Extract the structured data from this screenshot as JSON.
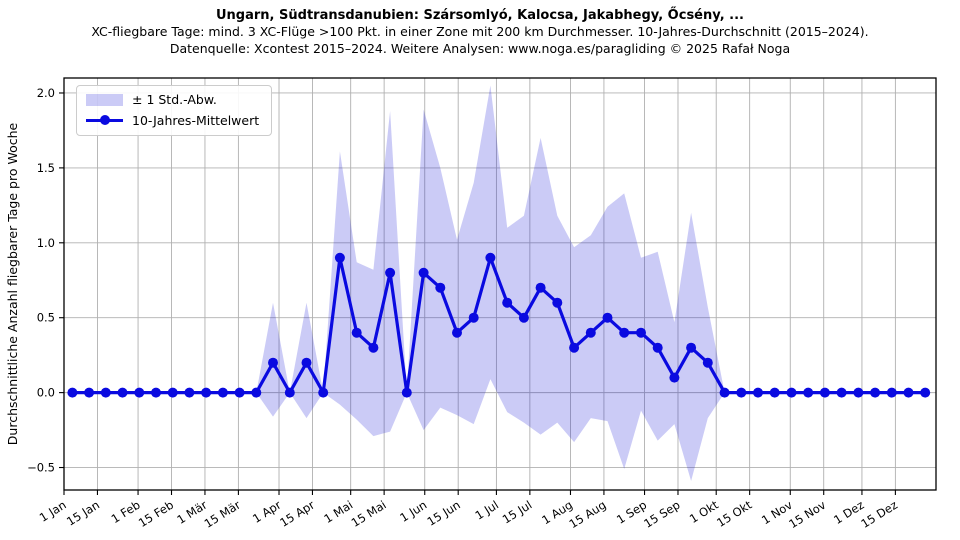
{
  "header": {
    "title": "Ungarn, Südtransdanubien: Szársomlyó, Kalocsa, Jakabhegy, Őcsény, ...",
    "subtitle1": "XC-fliegbare Tage: mind. 3 XC-Flüge >100 Pkt. in einer Zone mit 200 km Durchmesser. 10-Jahres-Durchschnitt (2015–2024).",
    "subtitle2": "Datenquelle: Xcontest 2015–2024. Weitere Analysen: www.noga.es/paragliding © 2025 Rafał Noga"
  },
  "legend": {
    "band_label": "± 1 Std.-Abw.",
    "mean_label": "10-Jahres-Mittelwert"
  },
  "colors": {
    "line": "#0a0ae0",
    "band": "rgba(20,20,215,0.22)",
    "grid": "#b0b0b0",
    "spine": "#000000",
    "text": "#000000",
    "background": "#ffffff"
  },
  "chart_data": {
    "type": "line",
    "title": "Ungarn, Südtransdanubien: Szársomlyó, Kalocsa, Jakabhegy, Őcsény, ...",
    "ylabel": "Durchschnittliche Anzahl fliegbarer Tage pro Woche",
    "xlabel": "",
    "grid": true,
    "legend_position": "upper-left",
    "ylim": [
      -0.65,
      2.1
    ],
    "xlim_days": [
      0,
      365
    ],
    "y_ticks": [
      -0.5,
      0.0,
      0.5,
      1.0,
      1.5,
      2.0
    ],
    "y_tick_labels": [
      "−0.5",
      "0.0",
      "0.5",
      "1.0",
      "1.5",
      "2.0"
    ],
    "x_tick_days": [
      0,
      14,
      31,
      45,
      59,
      73,
      90,
      104,
      120,
      134,
      151,
      165,
      181,
      195,
      212,
      226,
      243,
      257,
      273,
      287,
      304,
      318,
      334,
      348
    ],
    "x_tick_labels": [
      "1 Jan",
      "15 Jan",
      "1 Feb",
      "15 Feb",
      "1 Mär",
      "15 Mär",
      "1 Apr",
      "15 Apr",
      "1 Mai",
      "15 Mai",
      "1 Jun",
      "15 Jun",
      "1 Jul",
      "15 Jul",
      "1 Aug",
      "15 Aug",
      "1 Sep",
      "15 Sep",
      "1 Okt",
      "15 Okt",
      "1 Nov",
      "15 Nov",
      "1 Dez",
      "15 Dez"
    ],
    "series": [
      {
        "name": "10-Jahres-Mittelwert",
        "unit": "Tage pro Woche",
        "weekly": true,
        "values": [
          0,
          0,
          0,
          0,
          0,
          0,
          0,
          0,
          0,
          0,
          0,
          0,
          0.2,
          0,
          0.2,
          0,
          0.9,
          0.4,
          0.3,
          0.8,
          0,
          0.8,
          0.7,
          0.4,
          0.5,
          0.9,
          0.6,
          0.5,
          0.7,
          0.6,
          0.3,
          0.4,
          0.5,
          0.4,
          0.4,
          0.3,
          0.1,
          0.3,
          0.2,
          0,
          0,
          0,
          0,
          0,
          0,
          0,
          0,
          0,
          0,
          0,
          0,
          0
        ]
      },
      {
        "name": "± 1 Std.-Abw.",
        "band_upper": [
          0,
          0,
          0,
          0,
          0,
          0,
          0,
          0,
          0,
          0,
          0,
          0,
          0.6,
          0,
          0.6,
          0,
          1.61,
          0.87,
          0.82,
          1.88,
          0,
          1.89,
          1.5,
          1.02,
          1.4,
          2.05,
          1.1,
          1.18,
          1.7,
          1.18,
          0.97,
          1.05,
          1.24,
          1.33,
          0.9,
          0.94,
          0.47,
          1.2,
          0.57,
          0,
          0,
          0,
          0,
          0,
          0,
          0,
          0,
          0,
          0,
          0,
          0,
          0
        ],
        "band_lower": [
          0,
          0,
          0,
          0,
          0,
          0,
          0,
          0,
          0,
          0,
          0,
          0,
          -0.16,
          0,
          -0.17,
          0,
          -0.08,
          -0.18,
          -0.29,
          -0.26,
          0,
          -0.25,
          -0.1,
          -0.15,
          -0.21,
          0.09,
          -0.13,
          -0.2,
          -0.28,
          -0.2,
          -0.33,
          -0.17,
          -0.19,
          -0.51,
          -0.12,
          -0.32,
          -0.21,
          -0.59,
          -0.17,
          0,
          0,
          0,
          0,
          0,
          0,
          0,
          0,
          0,
          0,
          0,
          0,
          0
        ]
      }
    ]
  }
}
